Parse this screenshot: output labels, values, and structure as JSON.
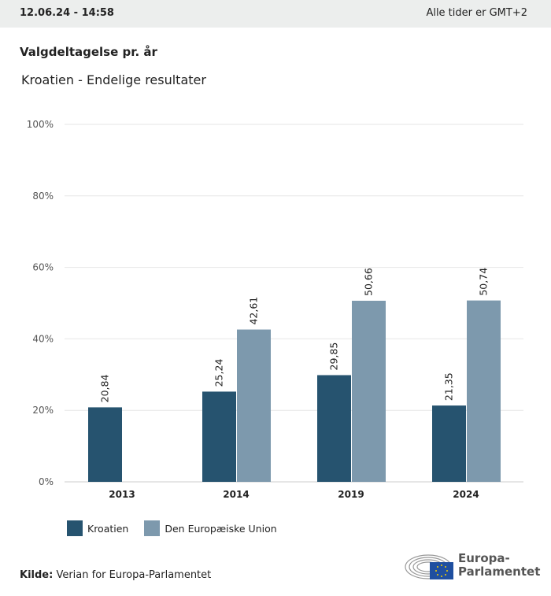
{
  "header": {
    "datetime": "12.06.24 - 14:58",
    "timezone": "Alle tider er GMT+2"
  },
  "chart_data": {
    "type": "bar",
    "title": "Valgdeltagelse pr. år",
    "subtitle": "Kroatien - Endelige resultater",
    "categories": [
      "2013",
      "2014",
      "2019",
      "2024"
    ],
    "series": [
      {
        "name": "Kroatien",
        "color": "#26536f",
        "values": [
          20.84,
          25.24,
          29.85,
          21.35
        ],
        "labels": [
          "20,84",
          "25,24",
          "29,85",
          "21,35"
        ]
      },
      {
        "name": "Den Europæiske Union",
        "color": "#7d99ad",
        "values": [
          null,
          42.61,
          50.66,
          50.74
        ],
        "labels": [
          null,
          "42,61",
          "50,66",
          "50,74"
        ]
      }
    ],
    "ylim": [
      0,
      100
    ],
    "yticks": [
      0,
      20,
      40,
      60,
      80,
      100
    ],
    "ytick_labels": [
      "0%",
      "20%",
      "40%",
      "60%",
      "80%",
      "100%"
    ],
    "grid": true,
    "legend": "bottom-left"
  },
  "footer": {
    "source_label": "Kilde:",
    "source_text": "Verian for Europa-Parlamentet",
    "logo_text": "Europa-Parlamentet"
  }
}
